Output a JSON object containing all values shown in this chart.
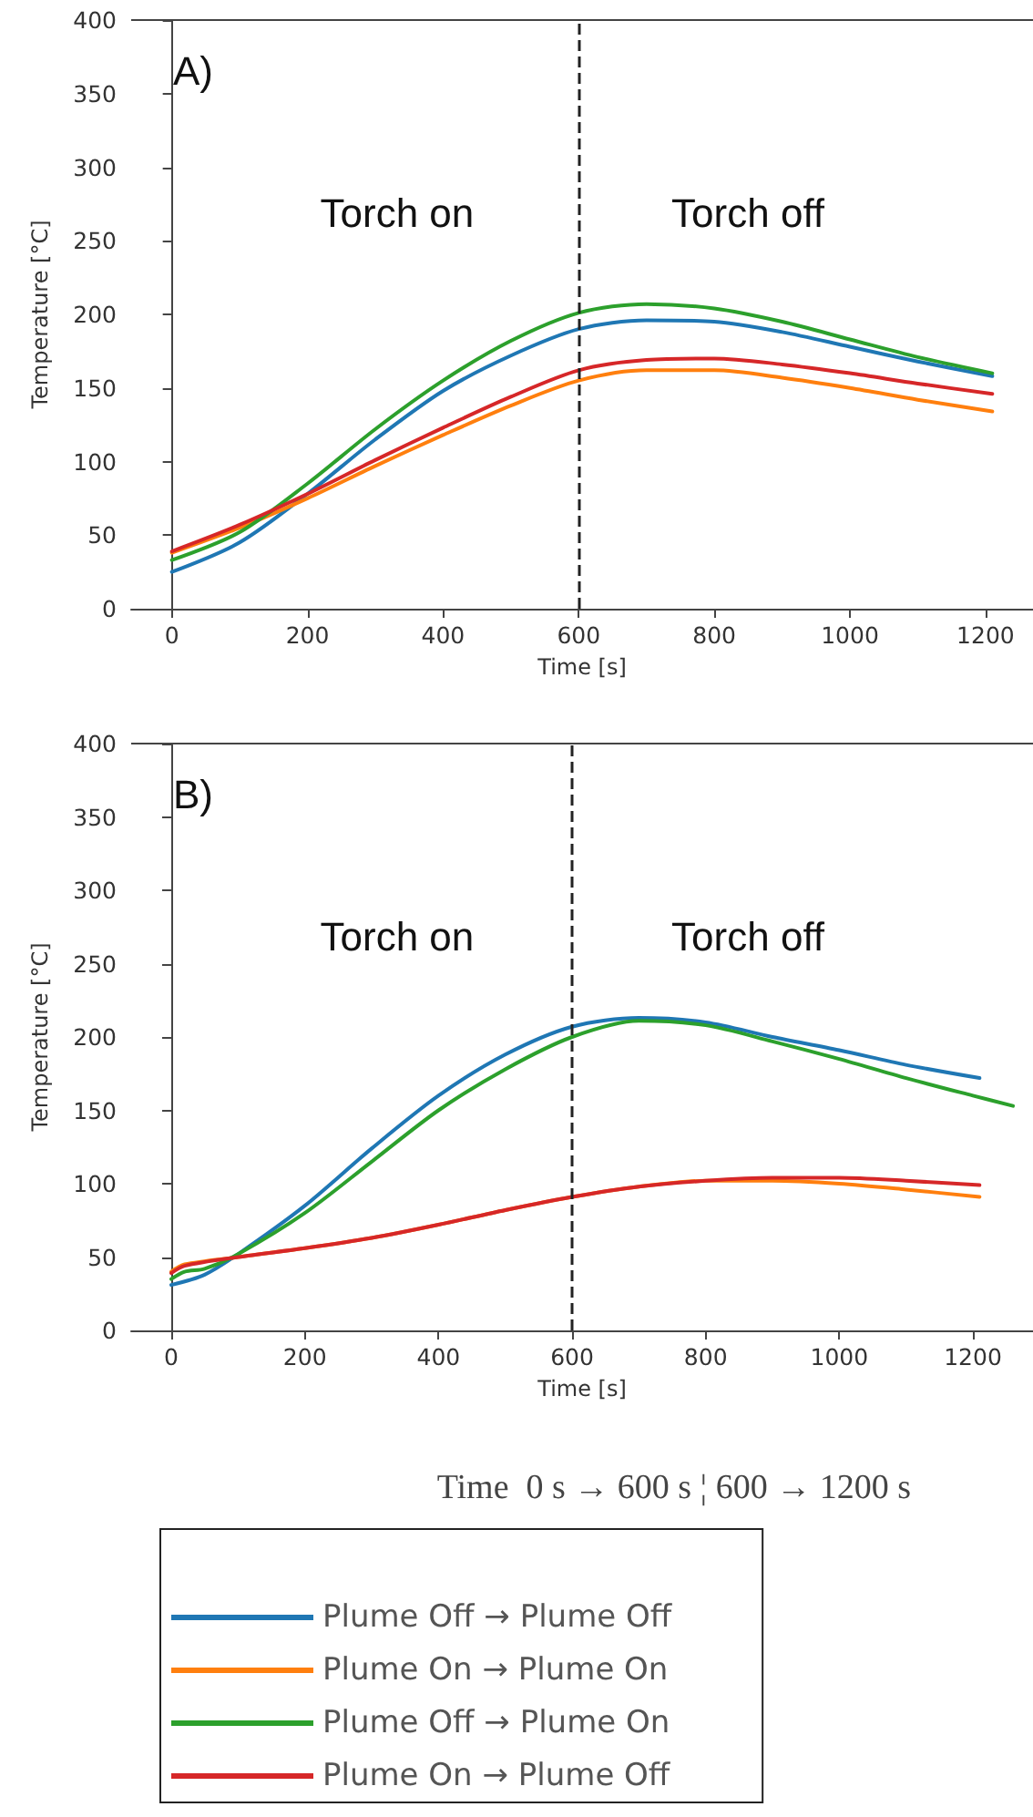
{
  "chart_data": [
    {
      "type": "line",
      "title": "A)",
      "xlabel": "Time [s]",
      "ylabel": "Temperature [°C]",
      "xlim": [
        -60,
        1270
      ],
      "xticks": [
        0,
        200,
        400,
        600,
        800,
        1000,
        1200
      ],
      "ylim": [
        0,
        400
      ],
      "yticks": [
        0,
        50,
        100,
        150,
        200,
        250,
        300,
        350,
        400
      ],
      "grid": false,
      "marker": "none",
      "line_style": "solid",
      "annotations": [
        "Torch on",
        "Torch off"
      ],
      "ref_lines": [
        {
          "axis": "x",
          "value": 600,
          "color": "#222222",
          "line_style": "dashed"
        }
      ],
      "series": [
        {
          "color": "#1f77b4",
          "x": [
            0,
            100,
            200,
            300,
            400,
            500,
            600,
            700,
            800,
            900,
            1000,
            1100,
            1210
          ],
          "values": [
            25,
            45,
            78,
            115,
            148,
            172,
            190,
            196,
            195,
            188,
            178,
            168,
            158
          ]
        },
        {
          "color": "#ff7f0e",
          "x": [
            0,
            100,
            200,
            300,
            400,
            500,
            600,
            700,
            800,
            900,
            1000,
            1100,
            1210
          ],
          "values": [
            38,
            55,
            75,
            97,
            118,
            138,
            155,
            162,
            162,
            157,
            150,
            142,
            134
          ]
        },
        {
          "color": "#2ca02c",
          "x": [
            0,
            100,
            200,
            300,
            400,
            500,
            600,
            700,
            800,
            900,
            1000,
            1100,
            1210
          ],
          "values": [
            33,
            52,
            85,
            122,
            155,
            182,
            201,
            207,
            204,
            195,
            183,
            171,
            160
          ]
        },
        {
          "color": "#d62728",
          "x": [
            0,
            100,
            200,
            300,
            400,
            500,
            600,
            700,
            800,
            900,
            1000,
            1100,
            1210
          ],
          "values": [
            39,
            57,
            78,
            101,
            123,
            144,
            162,
            169,
            170,
            166,
            160,
            153,
            146
          ]
        }
      ]
    },
    {
      "type": "line",
      "title": "B)",
      "xlabel": "Time [s]",
      "ylabel": "Temperature [°C]",
      "xlim": [
        -60,
        1290
      ],
      "xticks": [
        0,
        200,
        400,
        600,
        800,
        1000,
        1200
      ],
      "ylim": [
        0,
        400
      ],
      "yticks": [
        0,
        50,
        100,
        150,
        200,
        250,
        300,
        350,
        400
      ],
      "grid": false,
      "marker": "none",
      "line_style": "solid",
      "annotations": [
        "Torch on",
        "Torch off"
      ],
      "legend": "bottom",
      "legend_title": "Time  0 s → 600 s ¦ 600 → 1200 s",
      "ref_lines": [
        {
          "axis": "x",
          "value": 600,
          "color": "#222222",
          "line_style": "dashed"
        }
      ],
      "series": [
        {
          "name": "Plume Off → Plume Off",
          "color": "#1f77b4",
          "x": [
            0,
            50,
            100,
            200,
            300,
            400,
            500,
            600,
            700,
            800,
            900,
            1000,
            1100,
            1210
          ],
          "values": [
            31,
            38,
            52,
            85,
            124,
            160,
            188,
            207,
            213,
            210,
            200,
            191,
            181,
            172
          ]
        },
        {
          "name": "Plume On → Plume On",
          "color": "#ff7f0e",
          "x": [
            0,
            20,
            100,
            200,
            300,
            400,
            500,
            600,
            700,
            800,
            900,
            1000,
            1100,
            1210
          ],
          "values": [
            40,
            45,
            50,
            56,
            63,
            72,
            82,
            91,
            98,
            102,
            102,
            100,
            96,
            91
          ]
        },
        {
          "name": "Plume Off → Plume On",
          "color": "#2ca02c",
          "x": [
            0,
            20,
            50,
            100,
            200,
            300,
            400,
            500,
            600,
            700,
            800,
            900,
            1000,
            1100,
            1200,
            1260
          ],
          "values": [
            35,
            40,
            42,
            52,
            80,
            115,
            150,
            178,
            200,
            211,
            208,
            197,
            185,
            172,
            160,
            153
          ]
        },
        {
          "name": "Plume On → Plume Off",
          "color": "#d62728",
          "x": [
            0,
            20,
            100,
            200,
            300,
            400,
            500,
            600,
            700,
            800,
            900,
            1000,
            1100,
            1210
          ],
          "values": [
            39,
            44,
            50,
            56,
            63,
            72,
            82,
            91,
            98,
            102,
            104,
            104,
            102,
            99
          ]
        }
      ]
    }
  ]
}
